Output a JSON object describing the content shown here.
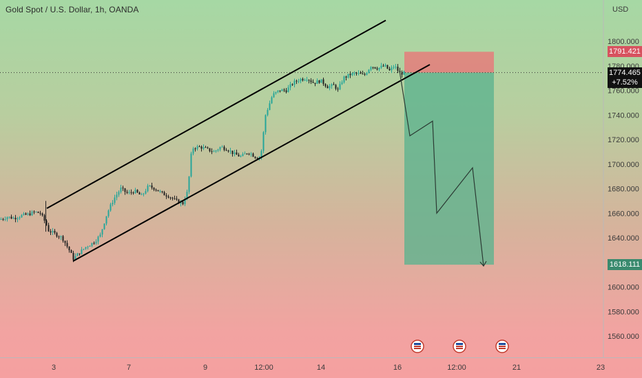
{
  "header": {
    "title": "Gold Spot / U.S. Dollar, 1h, OANDA"
  },
  "axis": {
    "currency": "USD",
    "y_ticks": [
      "1800.000",
      "1780.000",
      "1760.000",
      "1740.000",
      "1720.000",
      "1700.000",
      "1680.000",
      "1660.000",
      "1640.000",
      "1620.000",
      "1600.000",
      "1580.000",
      "1560.000"
    ],
    "x_ticks": [
      "3",
      "7",
      "9",
      "12:00",
      "14",
      "16",
      "12:00",
      "21",
      "23"
    ]
  },
  "price_labels": {
    "stop_loss": "1791.421",
    "current_price": "1774.465",
    "current_change": "+7.52%",
    "take_profit": "1618.111"
  },
  "colors": {
    "stop_zone": "#e57c7b",
    "target_zone": "#5eb38e",
    "candle_up": "#26a69a",
    "candle_down": "#222222",
    "channel_line": "#000000",
    "current_tag": "#111111",
    "stop_tag": "#d7525f",
    "target_tag": "#3a8a6e"
  },
  "icons": [
    "economic-event-icon",
    "economic-event-icon",
    "economic-event-icon"
  ],
  "chart_data": {
    "type": "candlestick",
    "title": "Gold Spot / U.S. Dollar, 1h, OANDA",
    "ylabel": "USD",
    "ylim": [
      1548,
      1822
    ],
    "x_ticks": [
      "3",
      "7",
      "9",
      "12:00",
      "14",
      "16",
      "12:00",
      "21",
      "23"
    ],
    "price_path": [
      [
        0,
        1655
      ],
      [
        10,
        1657
      ],
      [
        20,
        1656
      ],
      [
        30,
        1658
      ],
      [
        40,
        1659
      ],
      [
        50,
        1661
      ],
      [
        58,
        1660
      ],
      [
        66,
        1652
      ],
      [
        70,
        1646
      ],
      [
        80,
        1643
      ],
      [
        90,
        1640
      ],
      [
        100,
        1630
      ],
      [
        106,
        1623
      ],
      [
        115,
        1628
      ],
      [
        125,
        1633
      ],
      [
        135,
        1636
      ],
      [
        145,
        1642
      ],
      [
        155,
        1660
      ],
      [
        165,
        1672
      ],
      [
        175,
        1680
      ],
      [
        185,
        1676
      ],
      [
        195,
        1678
      ],
      [
        205,
        1674
      ],
      [
        215,
        1682
      ],
      [
        225,
        1680
      ],
      [
        235,
        1676
      ],
      [
        245,
        1674
      ],
      [
        255,
        1670
      ],
      [
        265,
        1668
      ],
      [
        272,
        1678
      ],
      [
        278,
        1713
      ],
      [
        290,
        1714
      ],
      [
        300,
        1712
      ],
      [
        310,
        1710
      ],
      [
        320,
        1714
      ],
      [
        330,
        1712
      ],
      [
        340,
        1708
      ],
      [
        350,
        1706
      ],
      [
        360,
        1710
      ],
      [
        370,
        1706
      ],
      [
        378,
        1706
      ],
      [
        385,
        1740
      ],
      [
        395,
        1756
      ],
      [
        405,
        1760
      ],
      [
        415,
        1760
      ],
      [
        425,
        1766
      ],
      [
        435,
        1769
      ],
      [
        445,
        1770
      ],
      [
        455,
        1766
      ],
      [
        465,
        1768
      ],
      [
        475,
        1763
      ],
      [
        485,
        1764
      ],
      [
        490,
        1760
      ],
      [
        498,
        1770
      ],
      [
        508,
        1773
      ],
      [
        518,
        1774
      ],
      [
        528,
        1772
      ],
      [
        538,
        1780
      ],
      [
        548,
        1778
      ],
      [
        558,
        1780
      ],
      [
        565,
        1776
      ],
      [
        572,
        1780
      ],
      [
        580,
        1774
      ],
      [
        588,
        1774
      ]
    ],
    "channel": {
      "upper": [
        [
          68,
          1664
        ],
        [
          560,
          1817
        ]
      ],
      "lower": [
        [
          106,
          1621
        ],
        [
          624,
          1781
        ]
      ]
    },
    "position": {
      "side": "short",
      "entry": 1774.465,
      "stop": 1791.421,
      "target": 1618.111
    },
    "projection_path": [
      [
        580,
        1776
      ],
      [
        595,
        1723
      ],
      [
        628,
        1735
      ],
      [
        634,
        1660
      ],
      [
        686,
        1697
      ],
      [
        702,
        1617
      ]
    ],
    "current_price": 1774.465,
    "change": "+7.52%"
  }
}
